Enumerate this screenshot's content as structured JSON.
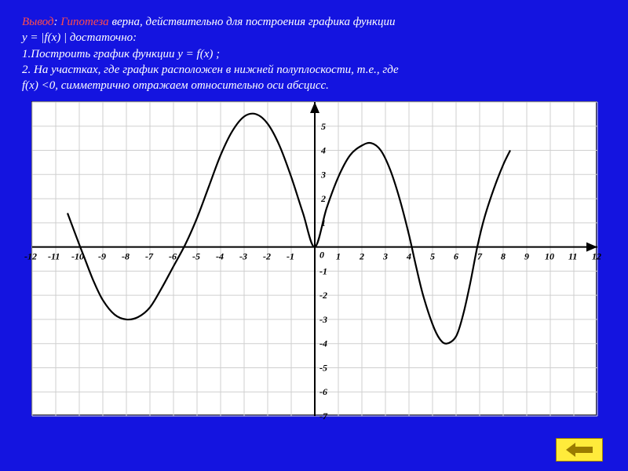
{
  "text": {
    "word_vyvod": "Вывод",
    "colon": ": ",
    "word_gipoteza": "Гипотеза",
    "line1_rest": " верна, действительно для построения графика функции",
    "line2": " y = |f(x) |  достаточно:",
    "line3": "1.Построить график функции y = f(x) ;",
    "line4": "2. На участках, где график расположен в нижней полуплоскости, т.е., где",
    "line5": "f(x) <0, симметрично отражаем относительно оси абсцисс."
  },
  "chart": {
    "type": "line",
    "background_color": "#ffffff",
    "grid_color": "#cfcfcf",
    "axis_color": "#000000",
    "curve_color": "#000000",
    "curve_width": 2.2,
    "xlim": [
      -12,
      12
    ],
    "ylim": [
      -7,
      6
    ],
    "xtick_step": 1,
    "ytick_step": 1,
    "xticks": [
      -12,
      -11,
      -10,
      -9,
      -8,
      -7,
      -6,
      -5,
      -4,
      -3,
      -2,
      -1,
      0,
      1,
      2,
      3,
      4,
      5,
      6,
      7,
      8,
      9,
      10,
      11,
      12
    ],
    "yticks_pos": [
      1,
      2,
      3,
      4,
      5
    ],
    "yticks_neg": [
      -1,
      -2,
      -3,
      -4,
      -5,
      -6,
      -7
    ],
    "tick_fontsize": 12,
    "points": [
      [
        -10.5,
        1.4
      ],
      [
        -10.0,
        0.1
      ],
      [
        -9.8,
        -0.4
      ],
      [
        -9.4,
        -1.4
      ],
      [
        -9.0,
        -2.2
      ],
      [
        -8.5,
        -2.8
      ],
      [
        -8.0,
        -3.0
      ],
      [
        -7.5,
        -2.9
      ],
      [
        -7.0,
        -2.5
      ],
      [
        -6.5,
        -1.7
      ],
      [
        -6.0,
        -0.8
      ],
      [
        -5.5,
        0.1
      ],
      [
        -5.0,
        1.2
      ],
      [
        -4.5,
        2.5
      ],
      [
        -4.0,
        3.8
      ],
      [
        -3.5,
        4.8
      ],
      [
        -3.0,
        5.4
      ],
      [
        -2.5,
        5.5
      ],
      [
        -2.0,
        5.1
      ],
      [
        -1.5,
        4.2
      ],
      [
        -1.0,
        2.9
      ],
      [
        -0.5,
        1.4
      ],
      [
        0.0,
        0.0
      ],
      [
        0.5,
        1.6
      ],
      [
        1.0,
        2.9
      ],
      [
        1.5,
        3.8
      ],
      [
        2.0,
        4.2
      ],
      [
        2.4,
        4.3
      ],
      [
        2.8,
        4.0
      ],
      [
        3.2,
        3.2
      ],
      [
        3.6,
        2.0
      ],
      [
        4.0,
        0.5
      ],
      [
        4.3,
        -0.8
      ],
      [
        4.6,
        -2.0
      ],
      [
        5.0,
        -3.2
      ],
      [
        5.3,
        -3.8
      ],
      [
        5.6,
        -4.0
      ],
      [
        6.0,
        -3.7
      ],
      [
        6.3,
        -2.8
      ],
      [
        6.6,
        -1.5
      ],
      [
        6.9,
        0.0
      ],
      [
        7.2,
        1.2
      ],
      [
        7.6,
        2.4
      ],
      [
        8.0,
        3.4
      ],
      [
        8.3,
        4.0
      ]
    ]
  },
  "nav": {
    "icon": "back-arrow",
    "color": "#ffeb3b"
  },
  "colors": {
    "page_bg": "#1414e0",
    "text": "#ffffff",
    "highlight": "#ff4d4d"
  }
}
